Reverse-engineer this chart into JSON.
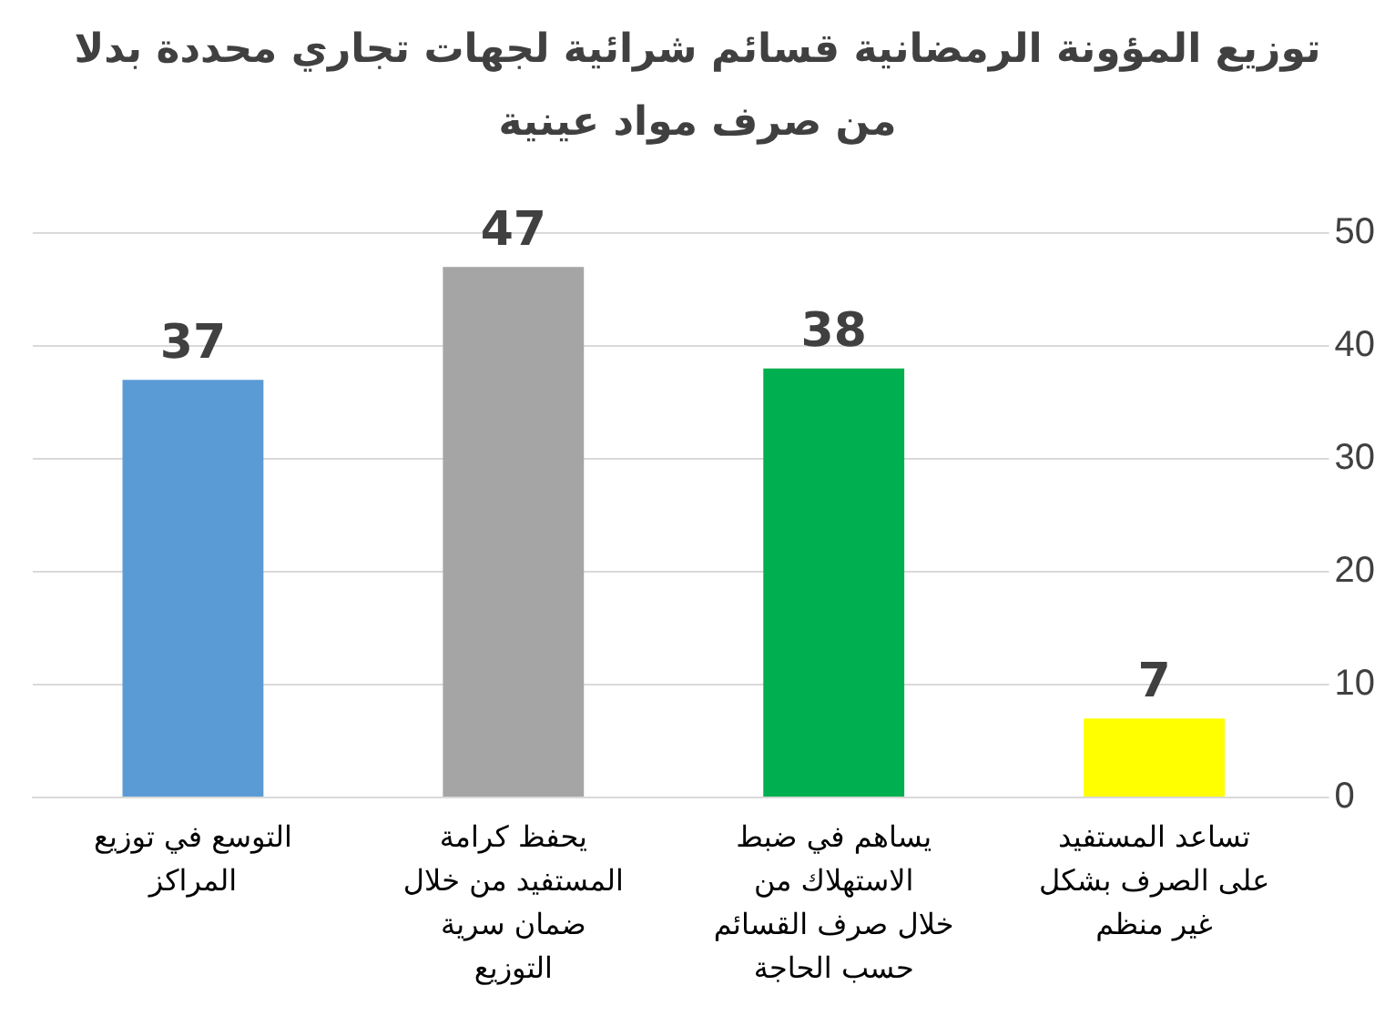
{
  "chart_data": {
    "type": "bar",
    "title": "توزيع المؤونة الرمضانية قسائم شرائية لجهات تجاري محددة بدلا من صرف مواد عينية",
    "categories": [
      "التوسع في توزيع المراكز",
      "يحفظ كرامة المستفيد من خلال ضمان سرية التوزيع",
      "يساهم في ضبط الاستهلاك من خلال صرف القسائم حسب الحاجة",
      "تساعد المستفيد على الصرف بشكل غير منظم"
    ],
    "values": [
      37,
      47,
      38,
      7
    ],
    "colors": [
      "#5b9bd5",
      "#a5a5a5",
      "#00b050",
      "#ffff00"
    ],
    "ylim": [
      0,
      50
    ],
    "yticks": [
      0,
      10,
      20,
      30,
      40,
      50
    ],
    "grid": "y",
    "data_labels": true
  }
}
